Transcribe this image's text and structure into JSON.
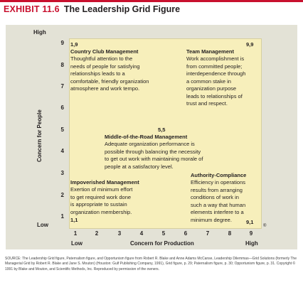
{
  "header": {
    "exhibit": "EXHIBIT 11.6",
    "title": "The Leadership Grid Figure"
  },
  "axes": {
    "y_label": "Concern for People",
    "x_label": "Concern for Production",
    "y_high": "High",
    "y_low": "Low",
    "x_low": "Low",
    "x_high": "High",
    "y_ticks": [
      "1",
      "2",
      "3",
      "4",
      "5",
      "6",
      "7",
      "8",
      "9"
    ],
    "x_ticks": [
      "1",
      "2",
      "3",
      "4",
      "5",
      "6",
      "7",
      "8",
      "9"
    ],
    "registered_mark": "®"
  },
  "styles": {
    "country_club": {
      "coord": "1,9",
      "title": "Country Club Management",
      "desc": "Thoughtful attention to the\nneeds of people for satisfying\nrelationships leads to a\ncomfortable, friendly organization\natmosphere and work tempo."
    },
    "team": {
      "coord": "9,9",
      "title": "Team Management",
      "desc": "Work accomplishment is\nfrom committed people;\ninterdependence through\na common stake in\norganization purpose\nleads to relationships of\ntrust and respect."
    },
    "middle": {
      "coord": "5,5",
      "title": "Middle-of-the-Road Management",
      "desc": "Adequate organization performance is\npossible through balancing the necessity\nto get out work with maintaining morale of\npeople at a satisfactory level."
    },
    "impoverished": {
      "coord": "1,1",
      "title": "Impoverished Management",
      "desc": "Exertion of minimum effort\nto get required work done\nis appropriate to sustain\norganization membership."
    },
    "authority": {
      "coord": "9,1",
      "title": "Authority-Compliance",
      "desc": "Efficiency in operations\nresults from arranging\nconditions of work in\nsuch a way that human\nelements interfere to a\nminimum degree."
    }
  },
  "source": "SOURCE: The Leadership Grid figure, Paternalism figure, and Opportunism figure from Robert R. Blake and Anne Adams McCanse, Leadership Dilemmas—Grid Solutions (formerly The Managerial Grid by Robert R. Blake and Jane S. Mouton) (Houston: Gulf Publishing Company, 1991), Grid figure, p. 29; Paternalism figure, p. 30; Opportunism figure, p. 31. Copyright © 1991 by Blake and Mouton, and Scientific Methods, Inc. Reproduced by permission of the owners.",
  "colors": {
    "accent": "#c8102e",
    "panel": "#e3e2d6",
    "grid": "#f7efbb"
  }
}
